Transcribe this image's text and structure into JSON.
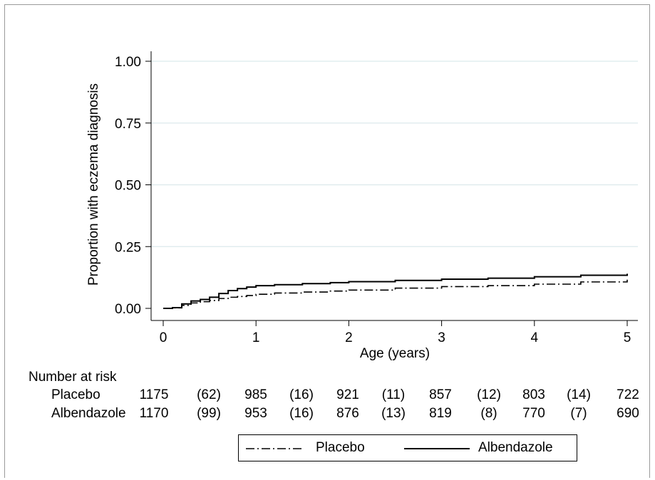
{
  "chart_data": {
    "type": "line",
    "xlabel": "Age (years)",
    "ylabel": "Proportion with eczema diagnosis",
    "xlim": [
      0,
      5
    ],
    "ylim": [
      0,
      1
    ],
    "xticks": [
      "0",
      "1",
      "2",
      "3",
      "4",
      "5"
    ],
    "yticks": [
      "0.00",
      "0.25",
      "0.50",
      "0.75",
      "1.00"
    ],
    "grid": "horizontal",
    "legend_position": "bottom",
    "series": [
      {
        "name": "Placebo",
        "line_style": "dash-dot",
        "points": [
          [
            0,
            0
          ],
          [
            0.1,
            0.002
          ],
          [
            0.2,
            0.012
          ],
          [
            0.3,
            0.022
          ],
          [
            0.4,
            0.027
          ],
          [
            0.5,
            0.032
          ],
          [
            0.6,
            0.04
          ],
          [
            0.7,
            0.045
          ],
          [
            0.8,
            0.048
          ],
          [
            0.9,
            0.052
          ],
          [
            1.0,
            0.057
          ],
          [
            1.2,
            0.062
          ],
          [
            1.5,
            0.066
          ],
          [
            1.8,
            0.07
          ],
          [
            2.0,
            0.074
          ],
          [
            2.5,
            0.082
          ],
          [
            3.0,
            0.088
          ],
          [
            3.5,
            0.092
          ],
          [
            4.0,
            0.098
          ],
          [
            4.5,
            0.107
          ],
          [
            5.0,
            0.116
          ]
        ]
      },
      {
        "name": "Albendazole",
        "line_style": "solid",
        "points": [
          [
            0,
            0
          ],
          [
            0.1,
            0.003
          ],
          [
            0.2,
            0.018
          ],
          [
            0.3,
            0.03
          ],
          [
            0.4,
            0.036
          ],
          [
            0.5,
            0.045
          ],
          [
            0.6,
            0.06
          ],
          [
            0.7,
            0.072
          ],
          [
            0.8,
            0.08
          ],
          [
            0.9,
            0.086
          ],
          [
            1.0,
            0.092
          ],
          [
            1.2,
            0.096
          ],
          [
            1.5,
            0.1
          ],
          [
            1.8,
            0.104
          ],
          [
            2.0,
            0.108
          ],
          [
            2.5,
            0.113
          ],
          [
            3.0,
            0.118
          ],
          [
            3.5,
            0.122
          ],
          [
            4.0,
            0.128
          ],
          [
            4.5,
            0.134
          ],
          [
            5.0,
            0.14
          ]
        ]
      }
    ],
    "number_at_risk": {
      "title": "Number at risk",
      "rows": [
        {
          "label": "Placebo",
          "values": [
            "1175",
            "(62)",
            "985",
            "(16)",
            "921",
            "(11)",
            "857",
            "(12)",
            "803",
            "(14)",
            "722"
          ]
        },
        {
          "label": "Albendazole",
          "values": [
            "1170",
            "(99)",
            "953",
            "(16)",
            "876",
            "(13)",
            "819",
            "(8)",
            "770",
            "(7)",
            "690"
          ]
        }
      ]
    },
    "colors": {
      "line": "#000000",
      "grid": "#dce9ec"
    }
  }
}
